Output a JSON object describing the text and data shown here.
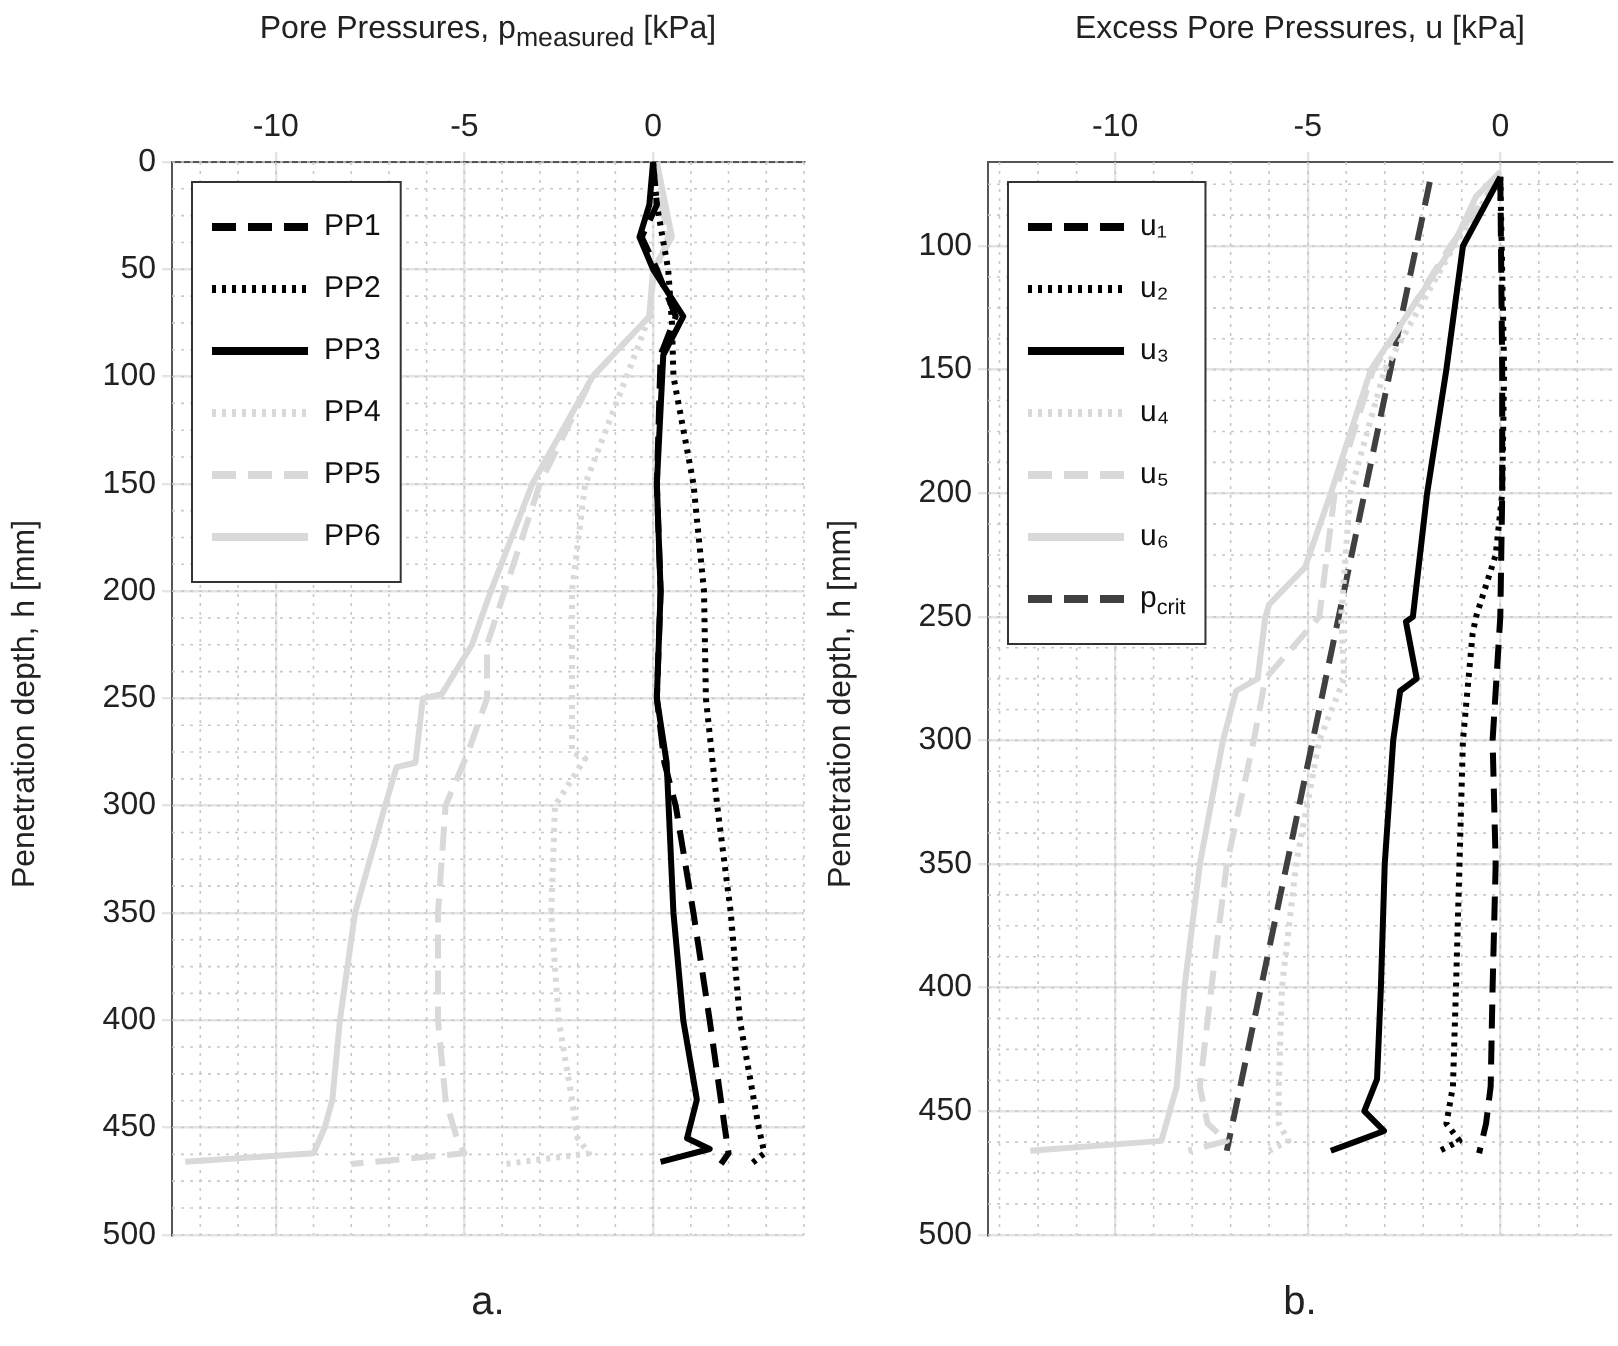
{
  "chart_data": [
    {
      "type": "line",
      "title": "a.",
      "xlabel": "Pore Pressures, p$_{measured}$   [kPa]",
      "ylabel": "Penetration depth, h [mm]",
      "xlim": [
        -12.75,
        4
      ],
      "xticks": [
        -10,
        -5,
        0
      ],
      "ylim": [
        500,
        0
      ],
      "yticks": [
        0,
        50,
        100,
        150,
        200,
        250,
        300,
        350,
        400,
        450,
        500
      ],
      "grid": true,
      "legend": "top left",
      "series": [
        {
          "name": "PP1",
          "color": "#000000",
          "line_style": "dashed",
          "x": [
            0,
            0.1,
            -0.3,
            0.1,
            0.6,
            0.2,
            0.1,
            0.2,
            0.1,
            0.3,
            0.6,
            1.07,
            1.5,
            1.9,
            2.0,
            1.8
          ],
          "values": [
            0,
            20,
            35,
            50,
            72,
            90,
            150,
            200,
            250,
            280,
            300,
            350,
            400,
            450,
            462,
            467
          ]
        },
        {
          "name": "PP2",
          "color": "#000000",
          "line_style": "dotted",
          "x": [
            0,
            0.1,
            0.4,
            0.5,
            0.54,
            1.07,
            1.35,
            1.4,
            1.7,
            2.06,
            2.3,
            2.8,
            2.95,
            2.6
          ],
          "values": [
            0,
            20,
            50,
            75,
            100,
            150,
            200,
            250,
            300,
            350,
            400,
            450,
            462,
            467
          ]
        },
        {
          "name": "PP3",
          "color": "#000000",
          "line_style": "solid",
          "x": [
            0,
            -0.1,
            -0.36,
            0,
            0.8,
            0.27,
            0.1,
            0.2,
            0.1,
            0.36,
            0.54,
            0.8,
            1.16,
            0.9,
            1.5,
            0.2
          ],
          "values": [
            0,
            20,
            35,
            50,
            72,
            90,
            150,
            200,
            250,
            280,
            350,
            400,
            437,
            455,
            460,
            466
          ]
        },
        {
          "name": "PP4",
          "color": "#d9d9d9",
          "line_style": "dotted",
          "x": [
            0,
            0.4,
            0,
            -0.1,
            -0.7,
            -1.8,
            -2.15,
            -2.15,
            -2.15,
            -1.8,
            -2.6,
            -2.7,
            -2.5,
            -2.15,
            -2.0,
            -1.7,
            -3.9
          ],
          "values": [
            0,
            35,
            55,
            72,
            100,
            150,
            200,
            250,
            275,
            278,
            300,
            350,
            400,
            437,
            455,
            462,
            467
          ]
        },
        {
          "name": "PP5",
          "color": "#d9d9d9",
          "line_style": "dashed",
          "x": [
            0,
            0.4,
            0,
            -0.1,
            -1.6,
            -3.0,
            -4.4,
            -4.4,
            -4.9,
            -5.5,
            -5.7,
            -5.7,
            -5.5,
            -5.2,
            -5.0,
            -8.0
          ],
          "values": [
            0,
            35,
            55,
            72,
            100,
            150,
            225,
            250,
            275,
            300,
            350,
            400,
            437,
            455,
            462,
            467
          ]
        },
        {
          "name": "PP6",
          "color": "#d9d9d9",
          "line_style": "solid",
          "x": [
            0.1,
            0.5,
            0,
            -0.1,
            -1.6,
            -3.2,
            -4.3,
            -4.8,
            -5.6,
            -6.1,
            -6.3,
            -6.8,
            -7.1,
            -7.9,
            -8.3,
            -8.5,
            -8.7,
            -9.0,
            -12.4
          ],
          "values": [
            0,
            35,
            50,
            72,
            100,
            150,
            200,
            225,
            248,
            250,
            280,
            282,
            300,
            350,
            400,
            437,
            450,
            462,
            466
          ]
        }
      ]
    },
    {
      "type": "line",
      "title": "b.",
      "xlabel": "Excess Pore Pressures, u [kPa]",
      "ylabel": "Penetration depth, h [mm]",
      "xlim": [
        -13.3,
        2.9
      ],
      "xticks": [
        -10,
        -5,
        0
      ],
      "ylim": [
        500,
        66
      ],
      "yticks": [
        100,
        150,
        200,
        250,
        300,
        350,
        400,
        450,
        500
      ],
      "grid": true,
      "legend": "top left",
      "series": [
        {
          "name": "u₁",
          "color": "#000000",
          "line_style": "dashed",
          "x": [
            0,
            0.05,
            0.05,
            0,
            -0.2,
            -0.12,
            -0.2,
            -0.25,
            -0.37,
            -0.55
          ],
          "values": [
            72,
            150,
            200,
            250,
            300,
            350,
            400,
            440,
            455,
            467
          ]
        },
        {
          "name": "u₂",
          "color": "#000000",
          "line_style": "dotted",
          "x": [
            0,
            0.1,
            0.05,
            -0.12,
            -0.63,
            -0.72,
            -0.97,
            -1.06,
            -1.15,
            -1.23,
            -1.4,
            -1.06,
            -1.57
          ],
          "values": [
            72,
            150,
            200,
            225,
            250,
            257,
            300,
            350,
            400,
            440,
            455,
            462,
            466
          ]
        },
        {
          "name": "u₃",
          "color": "#000000",
          "line_style": "solid",
          "x": [
            0,
            -0.97,
            -1.4,
            -1.9,
            -2.27,
            -2.45,
            -2.17,
            -2.6,
            -2.78,
            -3.0,
            -3.1,
            -3.2,
            -3.53,
            -3.02,
            -3.7,
            -4.4
          ],
          "values": [
            72,
            100,
            150,
            200,
            250,
            252,
            275,
            280,
            300,
            350,
            400,
            437,
            450,
            458,
            462,
            466
          ]
        },
        {
          "name": "u₄",
          "color": "#d9d9d9",
          "line_style": "dotted",
          "x": [
            0,
            -1.2,
            -3.0,
            -3.9,
            -4.13,
            -4.05,
            -4.7,
            -5.3,
            -5.67,
            -5.75,
            -5.75,
            -5.5,
            -6.0
          ],
          "values": [
            72,
            100,
            150,
            200,
            250,
            275,
            300,
            350,
            400,
            440,
            455,
            462,
            466
          ]
        },
        {
          "name": "u₅",
          "color": "#d9d9d9",
          "line_style": "dashed",
          "x": [
            0,
            -1.3,
            -3.3,
            -4.3,
            -4.7,
            -6.1,
            -6.4,
            -7.1,
            -7.5,
            -7.8,
            -7.6,
            -7.1,
            -8.1
          ],
          "values": [
            72,
            100,
            150,
            200,
            250,
            275,
            300,
            350,
            400,
            440,
            455,
            462,
            466
          ]
        },
        {
          "name": "u₆",
          "color": "#d9d9d9",
          "line_style": "solid",
          "x": [
            0,
            -0.63,
            -1.23,
            -3.36,
            -4.4,
            -5.07,
            -6.0,
            -6.1,
            -6.3,
            -6.86,
            -7.2,
            -7.8,
            -8.2,
            -8.4,
            -8.8,
            -12.2
          ],
          "values": [
            70,
            80,
            100,
            150,
            200,
            230,
            245,
            250,
            275,
            280,
            300,
            350,
            400,
            440,
            462,
            466
          ]
        },
        {
          "name": "p$_{crit}$",
          "color": "#404040",
          "line_style": "dashed",
          "x": [
            -1.83,
            -7.1
          ],
          "values": [
            74,
            466
          ]
        }
      ]
    }
  ]
}
